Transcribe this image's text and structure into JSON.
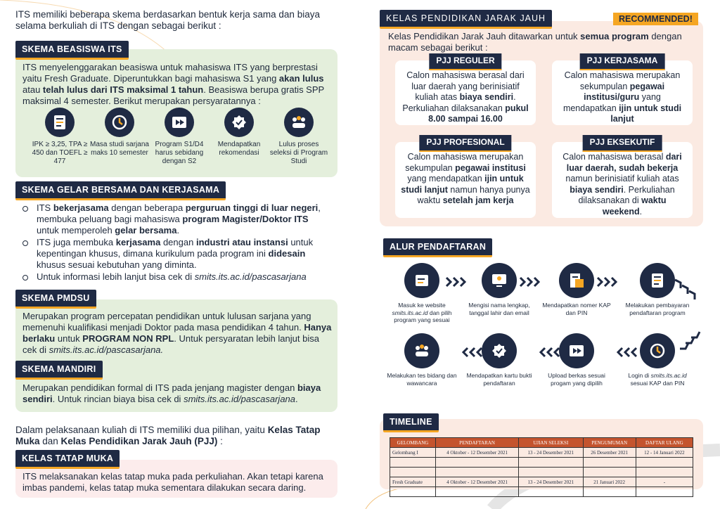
{
  "left": {
    "intro": "ITS memiliki beberapa skema berdasarkan bentuk kerja sama dan biaya selama berkuliah di ITS dengan sebagai berikut :",
    "beasiswa": {
      "title": "SKEMA BEASISWA ITS",
      "text": [
        "ITS menyelenggarakan beasiswa untuk mahasiswa ITS yang berprestasi yaitu Fresh Graduate. Diperuntukkan bagi mahasiswa S1 yang ",
        {
          "b": "akan lulus"
        },
        " atau ",
        {
          "b": "telah lulus dari ITS maksimal 1 tahun"
        },
        ". Beasiswa berupa gratis SPP maksimal 4 semester. Berikut merupakan persyaratannya :"
      ],
      "requirements": [
        "IPK ≥ 3,25, TPA ≥ 450 dan TOEFL ≥ 477",
        "Masa studi sarjana maks 10 semester",
        "Program S1/D4 harus sebidang dengan S2",
        "Mendapatkan rekomendasi",
        "Lulus proses seleksi di Program Studi"
      ]
    },
    "gelar": {
      "title": "SKEMA GELAR BERSAMA DAN KERJASAMA",
      "items": [
        [
          "ITS ",
          {
            "b": "bekerjasama"
          },
          " dengan beberapa ",
          {
            "b": "perguruan tinggi di luar negeri"
          },
          ", membuka peluang bagi mahasiswa ",
          {
            "b": "program Magister/Doktor ITS"
          },
          " untuk memperoleh ",
          {
            "b": "gelar bersama"
          },
          "."
        ],
        [
          "ITS juga membuka ",
          {
            "b": "kerjasama"
          },
          " dengan ",
          {
            "b": "industri atau instansi"
          },
          " untuk kepentingan khusus, dimana kurikulum pada program ini ",
          {
            "b": "didesain"
          },
          " khusus sesuai kebutuhan yang diminta."
        ],
        [
          "Untuk informasi lebih lanjut bisa cek di ",
          {
            "i": "smits.its.ac.id/pascasarjana"
          }
        ]
      ]
    },
    "pmdsu": {
      "title": "SKEMA PMDSU",
      "text": [
        "Merupakan program percepatan pendidikan untuk lulusan sarjana yang memenuhi kualifikasi menjadi Doktor pada masa pendidikan 4 tahun. ",
        {
          "b": "Hanya berlaku"
        },
        " untuk ",
        {
          "b": "PROGRAM NON RPL"
        },
        ". Untuk persyaratan lebih lanjut bisa cek di ",
        {
          "i": "smits.its.ac.id/pascasarjana."
        }
      ]
    },
    "mandiri": {
      "title": "SKEMA MANDIRI",
      "text": [
        "Merupakan pendidikan formal di ITS pada jenjang magister dengan ",
        {
          "b": "biaya sendiri"
        },
        ". Untuk rincian biaya bisa cek di ",
        {
          "i": "smits.its.ac.id/pascasarjana"
        },
        "."
      ]
    },
    "pilihan": [
      "Dalam pelaksanaan kuliah di ITS memiliki dua pilihan, yaitu ",
      {
        "b": "Kelas Tatap Muka"
      },
      " dan ",
      {
        "b": "Kelas Pendidikan Jarak Jauh (PJJ)"
      },
      " :"
    ],
    "tatap_muka": {
      "title": "KELAS TATAP MUKA",
      "text": "ITS melaksanakan kelas tatap muka pada perkuliahan. Akan tetapi karena imbas pandemi, kelas tatap muka sementara dilakukan secara daring."
    }
  },
  "right": {
    "pjj": {
      "title": "KELAS PENDIDIKAN JARAK JAUH",
      "badge": "RECOMMENDED!",
      "intro": [
        "Kelas Pendidikan Jarak Jauh ditawarkan untuk ",
        {
          "b": "semua program"
        },
        " dengan macam sebagai berikut :"
      ],
      "cards": [
        {
          "title": "PJJ REGULER",
          "text": [
            "Calon mahasiswa berasal dari luar daerah yang berinisiatif kuliah atas ",
            {
              "b": "biaya sendiri"
            },
            ". Perkuliahan dilaksanakan ",
            {
              "b": "pukul 8.00 sampai 16.00"
            }
          ]
        },
        {
          "title": "PJJ KERJASAMA",
          "text": [
            "Calon mahasiswa merupakan sekumpulan ",
            {
              "b": "pegawai institusi/guru"
            },
            " yang mendapatkan ",
            {
              "b": "ijin untuk studi lanjut"
            }
          ]
        },
        {
          "title": "PJJ PROFESIONAL",
          "text": [
            "Calon mahasiswa merupakan sekumpulan ",
            {
              "b": "pegawai institusi"
            },
            " yang mendapatkan ",
            {
              "b": "ijin untuk studi lanjut"
            },
            " namun hanya punya waktu ",
            {
              "b": "setelah jam kerja"
            }
          ]
        },
        {
          "title": "PJJ EKSEKUTIF",
          "text": [
            "Calon mahasiswa berasal ",
            {
              "b": "dari luar daerah, sudah bekerja"
            },
            " namun berinisiatif kuliah atas ",
            {
              "b": "biaya sendiri"
            },
            ". Perkuliahan dilaksanakan di ",
            {
              "b": "waktu weekend"
            },
            "."
          ]
        }
      ]
    },
    "alur": {
      "title": "ALUR PENDAFTARAN",
      "steps": [
        [
          "Masuk ke website ",
          {
            "i": "smits.its.ac.id"
          },
          " dan pilih program yang sesuai"
        ],
        "Mengisi nama lengkap, tanggal lahir dan email",
        "Mendapatkan nomer KAP dan PIN",
        "Melakukan pembayaran pendaftaran program",
        [
          "Login di ",
          {
            "i": "smits.its.ac.id"
          },
          " sesuai KAP dan PIN"
        ],
        "Upload berkas sesuai progam yang dipilih",
        "Mendapatkan kartu bukti pendaftaran",
        "Melakukan tes bidang dan wawancara"
      ]
    },
    "timeline": {
      "title": "TIMELINE",
      "header": [
        "GELOMBANG",
        "PENDAFTARAN",
        "UJIAN SELEKSI",
        "PENGUMUMAN",
        "DAFTAR ULANG"
      ],
      "rows": [
        [
          "Gelombang I",
          "4 Oktober - 12 Desember 2021",
          "13 - 24 Desember 2021",
          "26 Desember 2021",
          "12 - 14 Januari 2022"
        ],
        [
          "Fresh Graduate",
          "4 Oktober - 12 Desember 2021",
          "13 - 24 Desember 2021",
          "21 Januari 2022",
          "-"
        ]
      ]
    }
  }
}
